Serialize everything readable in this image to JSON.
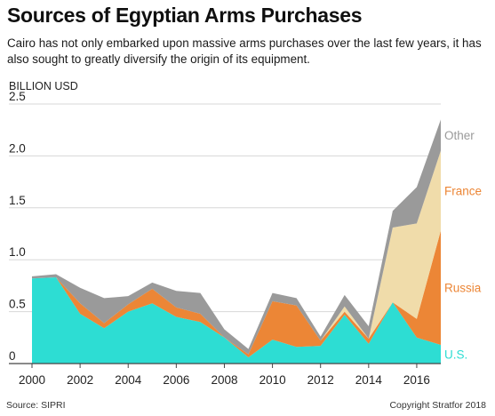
{
  "title": "Sources of Egyptian Arms Purchases",
  "subtitle": "Cairo has not only embarked upon massive arms purchases over the last few years, it has also sought to greatly diversify the origin of its equipment.",
  "source": "Source: SIPRI",
  "copyright": "Copyright Stratfor 2018",
  "colors": {
    "us": "#2dddd3",
    "russia": "#ec8636",
    "france": "#f0dcaa",
    "other": "#9a9a9a",
    "grid": "#d7d7d7",
    "axis": "#444444"
  },
  "chart_data": {
    "type": "area",
    "stacked": true,
    "title": "Sources of Egyptian Arms Purchases",
    "ylabel": "BILLION USD",
    "xlabel": "",
    "x": [
      2000,
      2001,
      2002,
      2003,
      2004,
      2005,
      2006,
      2007,
      2008,
      2009,
      2010,
      2011,
      2012,
      2013,
      2014,
      2015,
      2016,
      2017
    ],
    "xlim": [
      2000,
      2017
    ],
    "ylim": [
      0,
      2.5
    ],
    "x_ticks": [
      "2000",
      "2002",
      "2004",
      "2006",
      "2008",
      "2010",
      "2012",
      "2014",
      "2016"
    ],
    "y_ticks": [
      "0",
      "0.5",
      "1.0",
      "1.5",
      "2.0",
      "2.5"
    ],
    "grid": true,
    "legend": "direct labels at right",
    "series": [
      {
        "name": "U.S.",
        "values": [
          0.82,
          0.83,
          0.48,
          0.34,
          0.5,
          0.58,
          0.45,
          0.4,
          0.25,
          0.06,
          0.23,
          0.16,
          0.17,
          0.47,
          0.19,
          0.59,
          0.25,
          0.18
        ]
      },
      {
        "name": "Russia",
        "values": [
          0.0,
          0.0,
          0.1,
          0.05,
          0.07,
          0.14,
          0.09,
          0.08,
          0.0,
          0.03,
          0.37,
          0.4,
          0.05,
          0.03,
          0.05,
          0.0,
          0.18,
          1.1
        ]
      },
      {
        "name": "France",
        "values": [
          0.0,
          0.0,
          0.0,
          0.0,
          0.0,
          0.0,
          0.0,
          0.0,
          0.0,
          0.0,
          0.0,
          0.0,
          0.0,
          0.05,
          0.0,
          0.72,
          0.92,
          0.77
        ]
      },
      {
        "name": "Other",
        "values": [
          0.02,
          0.03,
          0.15,
          0.24,
          0.08,
          0.06,
          0.16,
          0.2,
          0.08,
          0.05,
          0.08,
          0.07,
          0.04,
          0.11,
          0.12,
          0.16,
          0.35,
          0.3
        ]
      }
    ]
  }
}
